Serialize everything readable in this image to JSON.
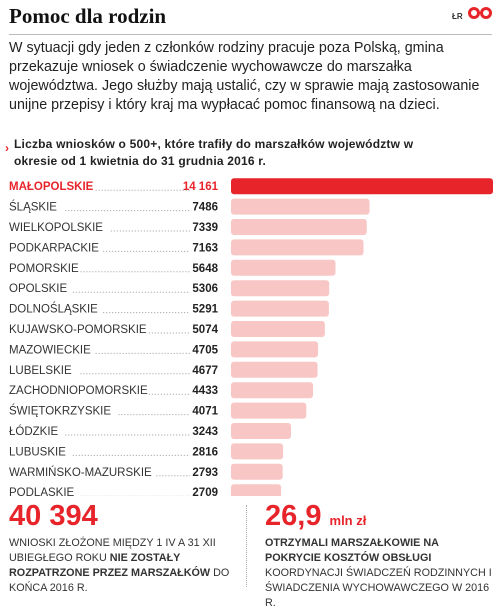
{
  "header": {
    "title": "Pomoc dla rodzin",
    "credit": "ŁR"
  },
  "intro": "W sytuacji gdy jeden z członków rodziny pracuje poza Polską, gmina przekazuje wniosek o świadczenie wychowawcze do marszałka województwa. Jego służby mają ustalić, czy w sprawie mają zastosowanie unijne przepisy i który kraj ma wypłacać pomoc finansową na dzieci.",
  "chart_data": {
    "type": "bar",
    "orientation": "horizontal",
    "title": "Liczba wniosków o 500+, które trafiły do marszałków województw w okresie od 1 kwietnia do 31 grudnia 2016 r.",
    "categories": [
      "MAŁOPOLSKIE",
      "ŚLĄSKIE",
      "WIELKOPOLSKIE",
      "PODKARPACKIE",
      "POMORSKIE",
      "OPOLSKIE",
      "DOLNOŚLĄSKIE",
      "KUJAWSKO-POMORSKIE",
      "MAZOWIECKIE",
      "LUBELSKIE",
      "ZACHODNIOPOMORSKIE",
      "ŚWIĘTOKRZYSKIE",
      "ŁÓDZKIE",
      "LUBUSKIE",
      "WARMIŃSKO-MAZURSKIE",
      "PODLASKIE"
    ],
    "values": [
      14161,
      7486,
      7339,
      7163,
      5648,
      5306,
      5291,
      5074,
      4705,
      4677,
      4433,
      4071,
      3243,
      2816,
      2793,
      2709
    ],
    "value_labels": [
      "14 161",
      "7486",
      "7339",
      "7163",
      "5648",
      "5306",
      "5291",
      "5074",
      "4705",
      "4677",
      "4433",
      "4071",
      "3243",
      "2816",
      "2793",
      "2709"
    ],
    "xlim": [
      0,
      14161
    ],
    "grid": false,
    "legend": "none",
    "colors": {
      "highlight": "#e8242b",
      "bar": "#f7c6c5",
      "highlight_label": "#e8242b"
    }
  },
  "summary_left": {
    "number": "40 394",
    "text_plain": "WNIOSKI ZŁOŻONE MIĘDZY 1 IV A 31 XII UBIEGŁEGO ROKU ",
    "text_bold": "NIE ZOSTAŁY ROZPATRZONE PRZEZ MARSZAŁKÓW",
    "text_end": " DO KOŃCA 2016 R."
  },
  "summary_right": {
    "number": "26,9",
    "unit": "mln zł",
    "text_bold": "OTRZYMALI MARSZAŁKOWIE NA POKRYCIE KOSZTÓW OBSŁUGI",
    "text_plain": " KOORDYNACJI ŚWIADCZEŃ RODZINNYCH I ŚWIADCZENIA WYCHOWAWCZEGO W 2016 R."
  }
}
